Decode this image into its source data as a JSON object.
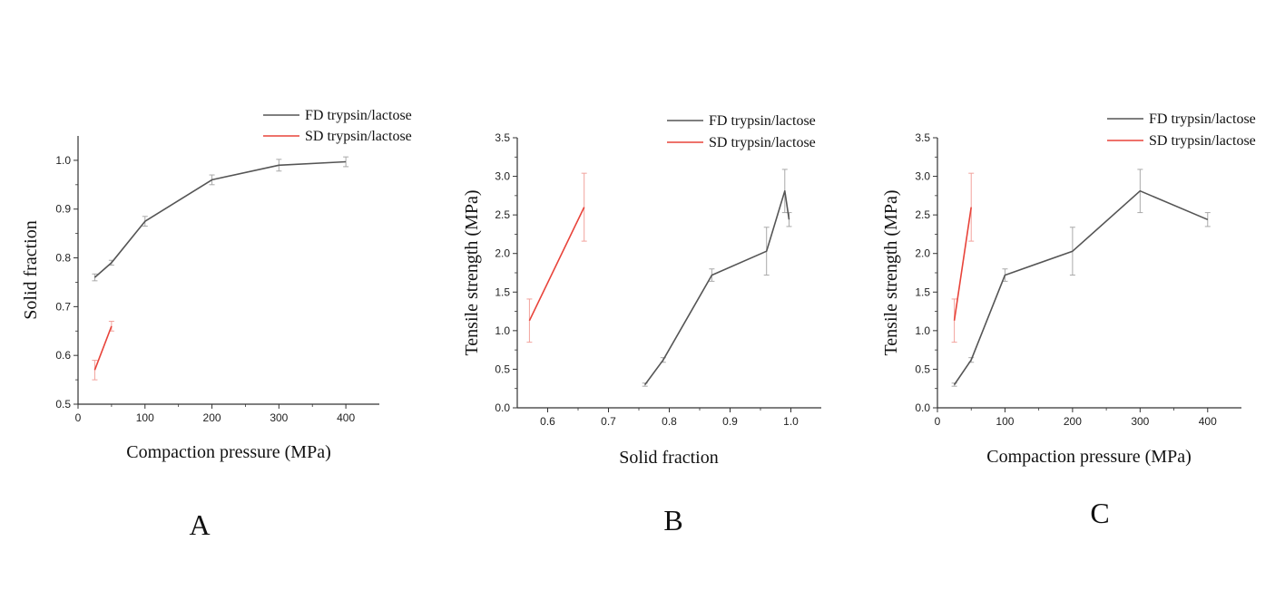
{
  "colors": {
    "fd": "#555555",
    "sd": "#e8433a",
    "fd_err": "#a9a9a9",
    "sd_err": "#f2a39d",
    "axis": "#333333"
  },
  "chart_data": [
    {
      "type": "line",
      "panel_label": "A",
      "xlabel": "Compaction pressure (MPa)",
      "ylabel": "Solid fraction",
      "xlim": [
        0,
        450
      ],
      "ylim": [
        0.5,
        1.05
      ],
      "xticks": [
        0,
        100,
        200,
        300,
        400
      ],
      "yticks": [
        0.5,
        0.6,
        0.7,
        0.8,
        0.9,
        1.0
      ],
      "xtick_labels": [
        "0",
        "100",
        "200",
        "300",
        "400"
      ],
      "ytick_labels": [
        "0.5",
        "0.6",
        "0.7",
        "0.8",
        "0.9",
        "1.0"
      ],
      "legend_position": "top-right",
      "series": [
        {
          "name": "FD trypsin/lactose",
          "key": "fd",
          "x": [
            25,
            50,
            100,
            200,
            300,
            400
          ],
          "y": [
            0.76,
            0.79,
            0.875,
            0.96,
            0.99,
            0.997
          ],
          "err": [
            0.007,
            0.005,
            0.01,
            0.01,
            0.012,
            0.01
          ]
        },
        {
          "name": "SD trypsin/lactose",
          "key": "sd",
          "x": [
            25,
            50
          ],
          "y": [
            0.57,
            0.66
          ],
          "err": [
            0.02,
            0.01
          ]
        }
      ]
    },
    {
      "type": "line",
      "panel_label": "B",
      "xlabel": "Solid fraction",
      "ylabel": "Tensile strength (MPa)",
      "xlim": [
        0.55,
        1.05
      ],
      "ylim": [
        0,
        3.5
      ],
      "xticks": [
        0.6,
        0.7,
        0.8,
        0.9,
        1.0
      ],
      "yticks": [
        0,
        0.5,
        1.0,
        1.5,
        2.0,
        2.5,
        3.0,
        3.5
      ],
      "xtick_labels": [
        "0.6",
        "0.7",
        "0.8",
        "0.9",
        "1.0"
      ],
      "ytick_labels": [
        "0.0",
        "0.5",
        "1.0",
        "1.5",
        "2.0",
        "2.5",
        "3.0",
        "3.5"
      ],
      "legend_position": "top-right",
      "series": [
        {
          "name": "FD trypsin/lactose",
          "key": "fd",
          "x": [
            0.76,
            0.79,
            0.87,
            0.96,
            0.99,
            0.997
          ],
          "y": [
            0.3,
            0.62,
            1.72,
            2.03,
            2.81,
            2.44
          ],
          "err": [
            0.02,
            0.03,
            0.08,
            0.31,
            0.28,
            0.09
          ]
        },
        {
          "name": "SD trypsin/lactose",
          "key": "sd",
          "x": [
            0.57,
            0.66
          ],
          "y": [
            1.13,
            2.6
          ],
          "err": [
            0.28,
            0.44
          ]
        }
      ]
    },
    {
      "type": "line",
      "panel_label": "C",
      "xlabel": "Compaction pressure (MPa)",
      "ylabel": "Tensile strength (MPa)",
      "xlim": [
        0,
        450
      ],
      "ylim": [
        0,
        3.5
      ],
      "xticks": [
        0,
        100,
        200,
        300,
        400
      ],
      "yticks": [
        0,
        0.5,
        1.0,
        1.5,
        2.0,
        2.5,
        3.0,
        3.5
      ],
      "xtick_labels": [
        "0",
        "100",
        "200",
        "300",
        "400"
      ],
      "ytick_labels": [
        "0.0",
        "0.5",
        "1.0",
        "1.5",
        "2.0",
        "2.5",
        "3.0",
        "3.5"
      ],
      "legend_position": "top-right",
      "series": [
        {
          "name": "FD trypsin/lactose",
          "key": "fd",
          "x": [
            25,
            50,
            100,
            200,
            300,
            400
          ],
          "y": [
            0.3,
            0.62,
            1.72,
            2.03,
            2.81,
            2.44
          ],
          "err": [
            0.02,
            0.03,
            0.08,
            0.31,
            0.28,
            0.09
          ]
        },
        {
          "name": "SD trypsin/lactose",
          "key": "sd",
          "x": [
            25,
            50
          ],
          "y": [
            1.13,
            2.6
          ],
          "err": [
            0.28,
            0.44
          ]
        }
      ]
    }
  ]
}
